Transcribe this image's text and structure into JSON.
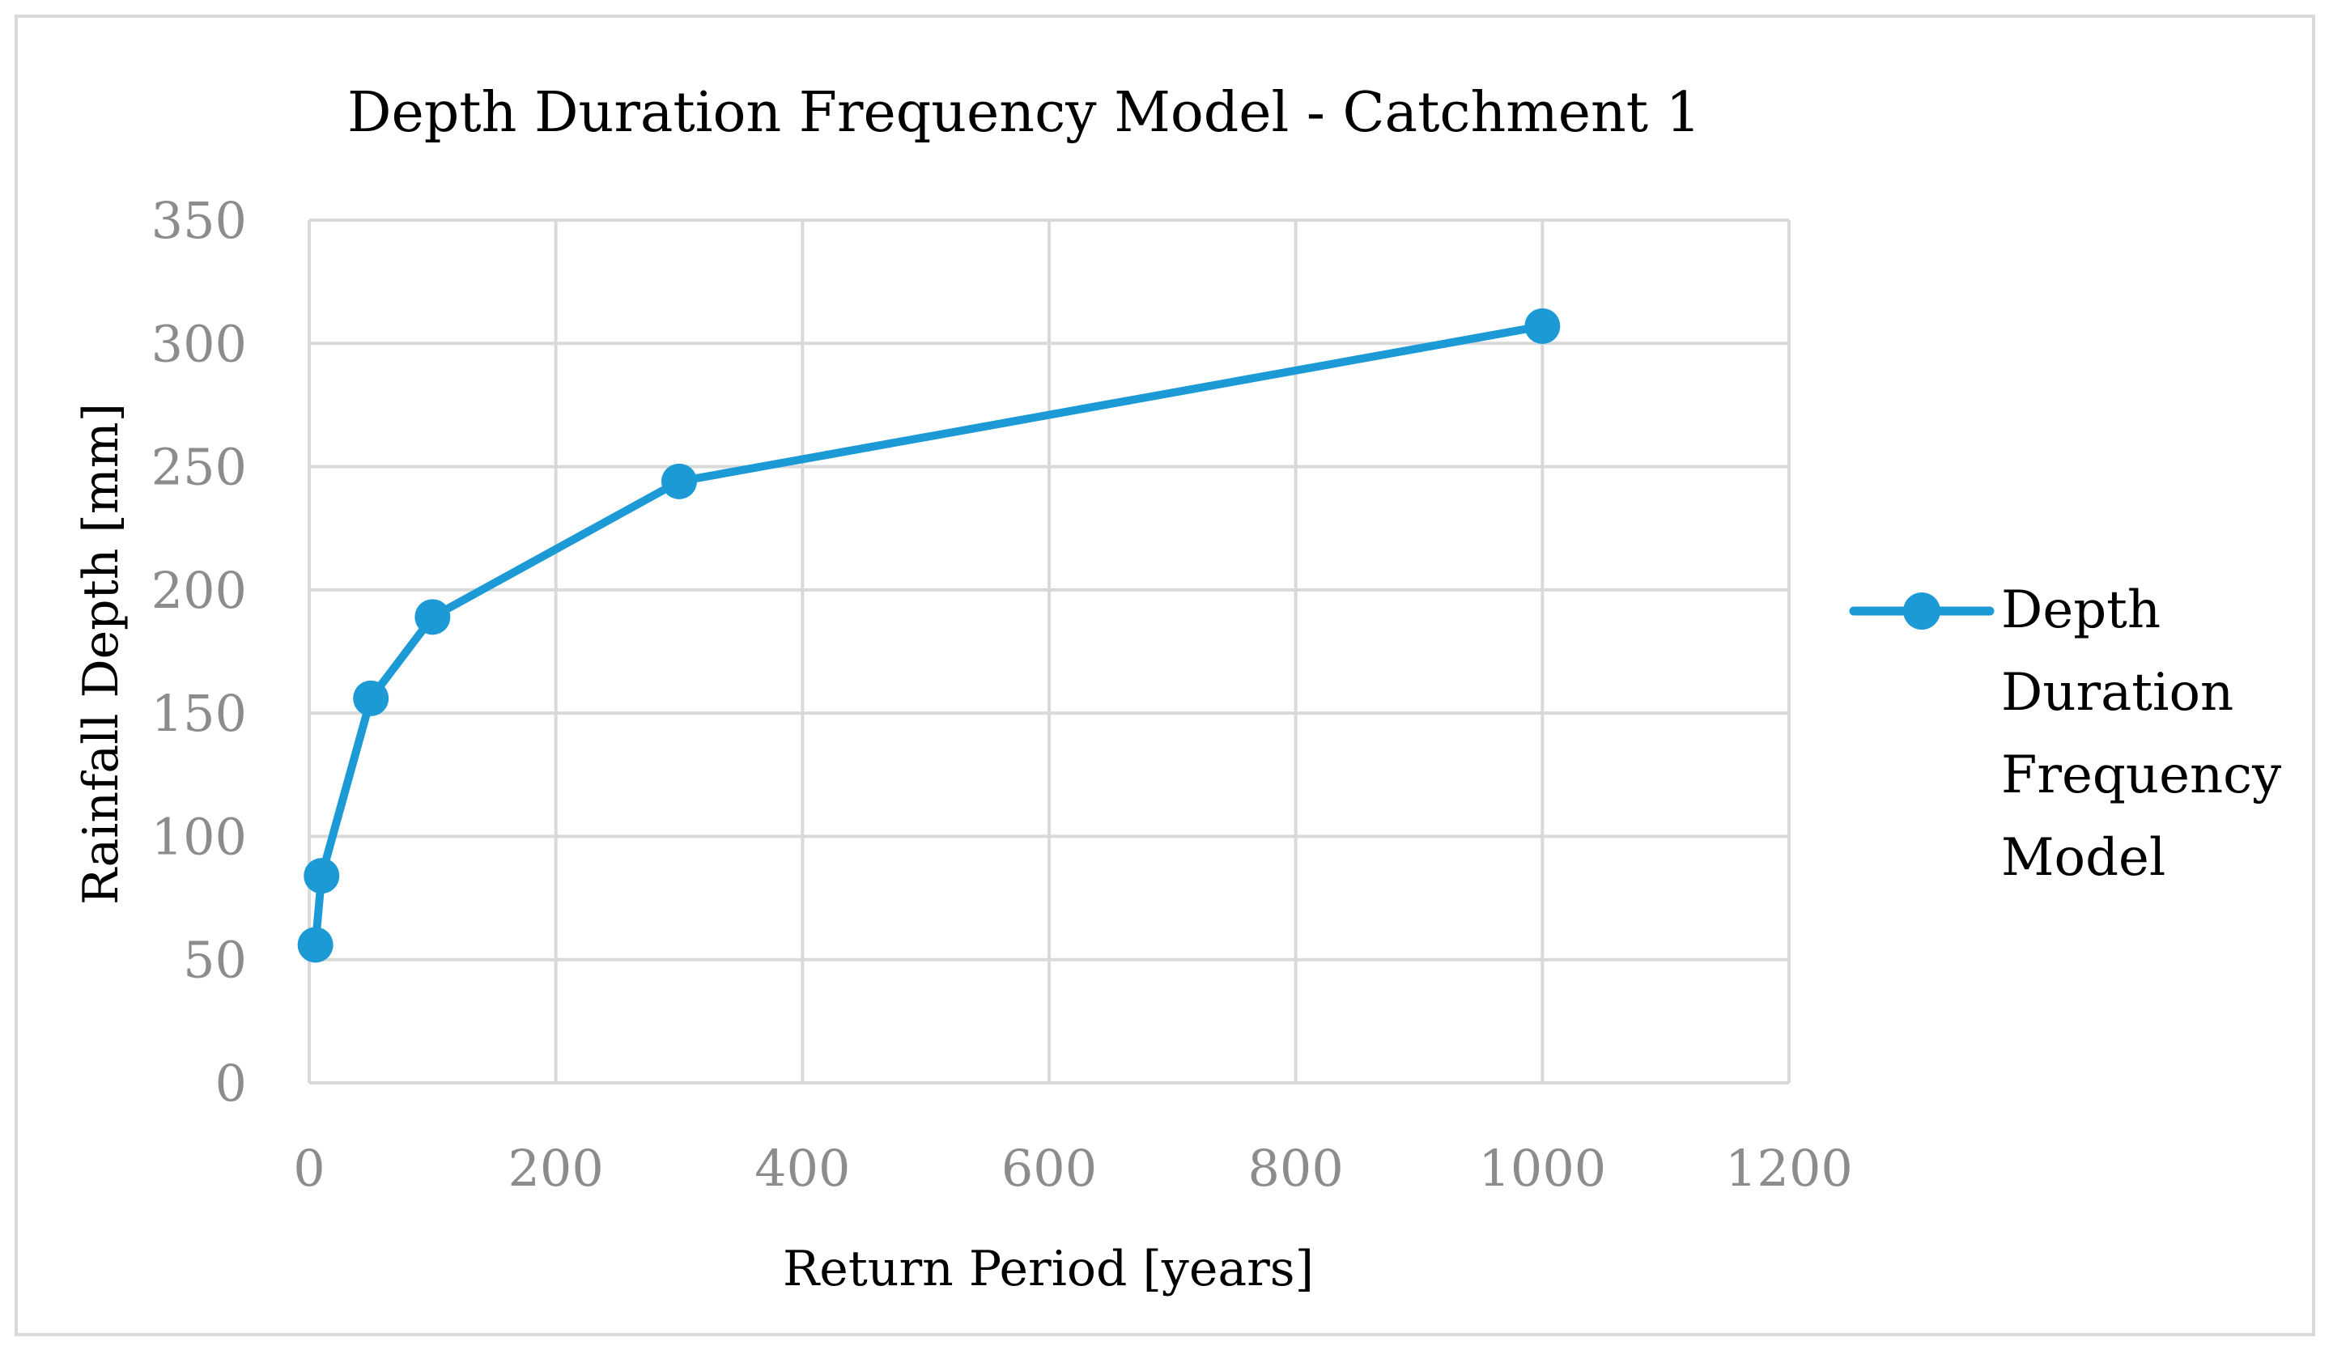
{
  "colors": {
    "series": "#1b9ad6",
    "grid": "#d9d9d9",
    "tick_text": "#8c8c8c",
    "text": "#000000"
  },
  "chart_data": {
    "type": "line",
    "title": "Depth Duration Frequency Model - Catchment 1",
    "xlabel": "Return Period [years]",
    "ylabel": "Rainfall Depth [mm]",
    "xlim": [
      0,
      1200
    ],
    "ylim": [
      0,
      350
    ],
    "xticks": [
      0,
      200,
      400,
      600,
      800,
      1000,
      1200
    ],
    "yticks": [
      0,
      50,
      100,
      150,
      200,
      250,
      300,
      350
    ],
    "grid": true,
    "legend_position": "right",
    "series": [
      {
        "name": "Depth Duration Frequency Model",
        "legend_lines": [
          "Depth",
          "Duration",
          "Frequency",
          "Model"
        ],
        "x": [
          5,
          10,
          50,
          100,
          300,
          1000
        ],
        "y": [
          56,
          84,
          156,
          189,
          244,
          307
        ]
      }
    ]
  }
}
